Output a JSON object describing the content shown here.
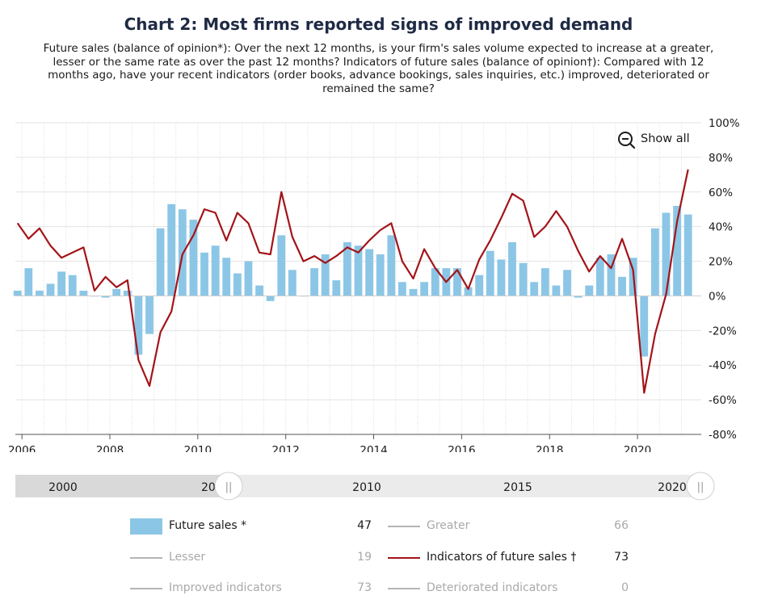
{
  "title": "Chart 2: Most firms reported signs of improved demand",
  "subtitle": "Future sales (balance of opinion*): Over the next 12 months, is your firm's sales volume expected to increase at a greater, lesser or the same rate as over the past 12 months? Indicators of future sales (balance of opinion†): Compared with 12 months ago, have your recent indicators (order books, advance bookings, sales inquiries, etc.) improved, deteriorated or remained the same?",
  "show_all_label": "Show all",
  "chart_data": {
    "type": "bar",
    "title": "Chart 2: Most firms reported signs of improved demand",
    "xlabel": "",
    "ylabel": "",
    "x_start": 2005.85,
    "x_end": 2021.45,
    "ylim": [
      -80,
      100
    ],
    "y_ticks": [
      100,
      80,
      60,
      40,
      20,
      0,
      -20,
      -40,
      -60,
      -80
    ],
    "y_tick_labels": [
      "100%",
      "80%",
      "60%",
      "40%",
      "20%",
      "0%",
      "-20%",
      "-40%",
      "-60%",
      "-80%"
    ],
    "x_ticks": [
      2006,
      2008,
      2010,
      2012,
      2014,
      2016,
      2018,
      2020
    ],
    "x_tick_labels": [
      "2006",
      "2008",
      "2010",
      "2012",
      "2014",
      "2016",
      "2018",
      "2020"
    ],
    "quarter_start": 2005.9,
    "series": [
      {
        "name": "Future sales *",
        "type": "bar",
        "color": "#8cc6e6",
        "values": [
          3,
          16,
          3,
          7,
          14,
          12,
          3,
          0,
          -1,
          4,
          3,
          -34,
          -22,
          39,
          53,
          50,
          44,
          25,
          29,
          22,
          13,
          20,
          6,
          -3,
          35,
          15,
          0,
          16,
          24,
          9,
          31,
          29,
          27,
          24,
          35,
          8,
          4,
          8,
          16,
          16,
          16,
          5,
          12,
          26,
          21,
          31,
          19,
          8,
          16,
          6,
          15,
          -1,
          6,
          22,
          24,
          11,
          22,
          -35,
          39,
          48,
          52,
          47
        ]
      },
      {
        "name": "Indicators of future sales †",
        "type": "line",
        "color": "#a31419",
        "values": [
          42,
          33,
          39,
          29,
          22,
          25,
          28,
          3,
          11,
          5,
          9,
          -37,
          -52,
          -21,
          -9,
          24,
          35,
          50,
          48,
          32,
          48,
          42,
          25,
          24,
          60,
          34,
          20,
          23,
          19,
          23,
          28,
          25,
          32,
          38,
          42,
          20,
          10,
          27,
          16,
          8,
          15,
          4,
          21,
          32,
          45,
          59,
          55,
          34,
          40,
          49,
          40,
          26,
          14,
          23,
          16,
          33,
          15,
          -56,
          -22,
          1,
          43,
          73
        ]
      }
    ]
  },
  "navigator": {
    "labels": [
      "2000",
      "2005",
      "2010",
      "2015",
      "2020"
    ],
    "partial_label": "20",
    "handle_glyph": "||"
  },
  "legend": [
    {
      "label": "Future sales *",
      "value": "47",
      "kind": "box",
      "color": "#8cc6e6",
      "active": true
    },
    {
      "label": "Greater",
      "value": "66",
      "kind": "line",
      "color": "#b5b5b5",
      "active": false
    },
    {
      "label": "Lesser",
      "value": "19",
      "kind": "line",
      "color": "#b5b5b5",
      "active": false
    },
    {
      "label": "Indicators of future sales †",
      "value": "73",
      "kind": "line",
      "color": "#a31419",
      "active": true
    },
    {
      "label": "Improved indicators",
      "value": "73",
      "kind": "line",
      "color": "#b5b5b5",
      "active": false
    },
    {
      "label": "Deteriorated indicators",
      "value": "0",
      "kind": "line",
      "color": "#b5b5b5",
      "active": false
    }
  ]
}
